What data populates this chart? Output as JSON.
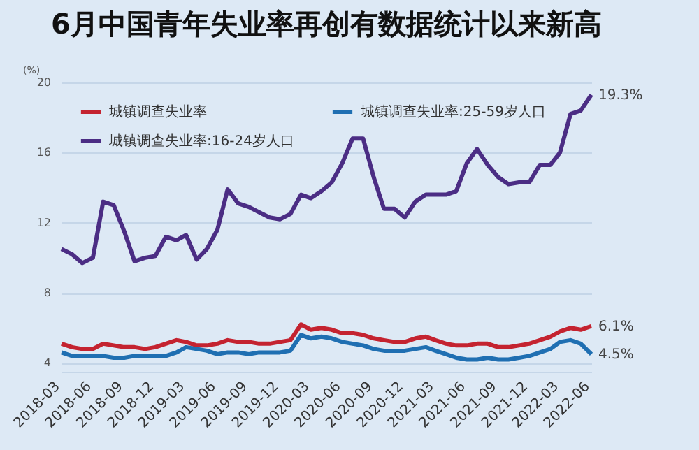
{
  "chart_data": {
    "type": "line",
    "title": "6月中国青年失业率再创有数据统计以来新高",
    "ylabel": "(%)",
    "x": [
      "2018-03",
      "2018-04",
      "2018-05",
      "2018-06",
      "2018-07",
      "2018-08",
      "2018-09",
      "2018-10",
      "2018-11",
      "2018-12",
      "2019-01",
      "2019-02",
      "2019-03",
      "2019-04",
      "2019-05",
      "2019-06",
      "2019-07",
      "2019-08",
      "2019-09",
      "2019-10",
      "2019-11",
      "2019-12",
      "2020-01",
      "2020-02",
      "2020-03",
      "2020-04",
      "2020-05",
      "2020-06",
      "2020-07",
      "2020-08",
      "2020-09",
      "2020-10",
      "2020-11",
      "2020-12",
      "2021-01",
      "2021-02",
      "2021-03",
      "2021-04",
      "2021-05",
      "2021-06",
      "2021-07",
      "2021-08",
      "2021-09",
      "2021-10",
      "2021-11",
      "2021-12",
      "2022-01",
      "2022-02",
      "2022-03",
      "2022-04",
      "2022-05",
      "2022-06"
    ],
    "xlim": [
      "2018-03",
      "2022-06"
    ],
    "xticks": [
      "2018-03",
      "2018-06",
      "2018-09",
      "2018-12",
      "2019-03",
      "2019-06",
      "2019-09",
      "2019-12",
      "2020-03",
      "2020-06",
      "2020-09",
      "2020-12",
      "2021-03",
      "2021-06",
      "2021-09",
      "2021-12",
      "2022-03",
      "2022-06"
    ],
    "annotations": [
      {
        "text": "19.3%",
        "x": "2022-06",
        "y": 19.3
      },
      {
        "text": "6.1%",
        "x": "2022-06",
        "y": 6.1
      },
      {
        "text": "4.5%",
        "x": "2022-06",
        "y": 4.5
      }
    ],
    "ylim": [
      3.5,
      20
    ],
    "yticks": [
      4,
      8,
      12,
      16,
      20
    ],
    "grid": "y",
    "legend": "top left",
    "marker": "none",
    "line_style": "solid",
    "series": [
      {
        "name": "城镇调查失业率",
        "color": "#c42330",
        "values": [
          5.1,
          4.9,
          4.8,
          4.8,
          5.1,
          5.0,
          4.9,
          4.9,
          4.8,
          4.9,
          5.1,
          5.3,
          5.2,
          5.0,
          5.0,
          5.1,
          5.3,
          5.2,
          5.2,
          5.1,
          5.1,
          5.2,
          5.3,
          6.2,
          5.9,
          6.0,
          5.9,
          5.7,
          5.7,
          5.6,
          5.4,
          5.3,
          5.2,
          5.2,
          5.4,
          5.5,
          5.3,
          5.1,
          5.0,
          5.0,
          5.1,
          5.1,
          4.9,
          4.9,
          5.0,
          5.1,
          5.3,
          5.5,
          5.8,
          6.0,
          5.9,
          6.1
        ]
      },
      {
        "name": "城镇调查失业率:25-59岁人口",
        "color": "#1f6fb2",
        "values": [
          4.6,
          4.4,
          4.4,
          4.4,
          4.4,
          4.3,
          4.3,
          4.4,
          4.4,
          4.4,
          4.4,
          4.6,
          4.9,
          4.8,
          4.7,
          4.5,
          4.6,
          4.6,
          4.5,
          4.6,
          4.6,
          4.6,
          4.7,
          5.6,
          5.4,
          5.5,
          5.4,
          5.2,
          5.1,
          5.0,
          4.8,
          4.7,
          4.7,
          4.7,
          4.8,
          4.9,
          4.7,
          4.5,
          4.3,
          4.2,
          4.2,
          4.3,
          4.2,
          4.2,
          4.3,
          4.4,
          4.6,
          4.8,
          5.2,
          5.3,
          5.1,
          4.5
        ]
      },
      {
        "name": "城镇调查失业率:16-24岁人口",
        "color": "#4b2d84",
        "values": [
          10.5,
          10.2,
          9.7,
          10.0,
          13.2,
          13.0,
          11.5,
          9.8,
          10.0,
          10.1,
          11.2,
          11.0,
          11.3,
          9.9,
          10.5,
          11.6,
          13.9,
          13.1,
          12.9,
          12.6,
          12.3,
          12.2,
          12.5,
          13.6,
          13.4,
          13.8,
          14.3,
          15.4,
          16.8,
          16.8,
          14.6,
          12.8,
          12.8,
          12.3,
          13.2,
          13.6,
          13.6,
          13.6,
          13.8,
          15.4,
          16.2,
          15.3,
          14.6,
          14.2,
          14.3,
          14.3,
          15.3,
          15.3,
          16.0,
          18.2,
          18.4,
          19.3
        ]
      }
    ]
  }
}
